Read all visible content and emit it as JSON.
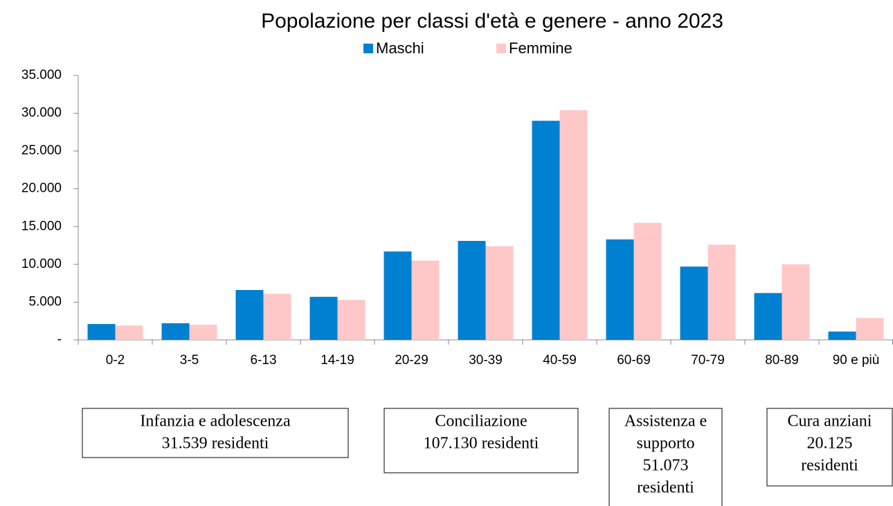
{
  "chart_data": {
    "type": "bar",
    "title": "Popolazione per classi d'età e genere - anno 2023",
    "categories": [
      "0-2",
      "3-5",
      "6-13",
      "14-19",
      "20-29",
      "30-39",
      "40-59",
      "60-69",
      "70-79",
      "80-89",
      "90 e più"
    ],
    "series": [
      {
        "name": "Maschi",
        "color": "#0080d0",
        "values": [
          2100,
          2200,
          6600,
          5700,
          11700,
          13100,
          29000,
          13300,
          9700,
          6200,
          1100
        ]
      },
      {
        "name": "Femmine",
        "color": "#ffc8c8",
        "values": [
          1900,
          2000,
          6100,
          5300,
          10500,
          12400,
          30400,
          15500,
          12600,
          10000,
          2900
        ]
      }
    ],
    "ylim": [
      0,
      35000
    ],
    "yticks": [
      {
        "value": 0,
        "label": "-"
      },
      {
        "value": 5000,
        "label": "5.000"
      },
      {
        "value": 10000,
        "label": "10.000"
      },
      {
        "value": 15000,
        "label": "15.000"
      },
      {
        "value": 20000,
        "label": "20.000"
      },
      {
        "value": 25000,
        "label": "25.000"
      },
      {
        "value": 30000,
        "label": "30.000"
      },
      {
        "value": 35000,
        "label": "35.000"
      }
    ],
    "grid": false,
    "legend": "top",
    "annotations": [
      {
        "lines": [
          "Infanzia e adolescenza",
          "31.539 residenti"
        ]
      },
      {
        "lines": [
          "Conciliazione",
          "107.130 residenti"
        ]
      },
      {
        "lines": [
          "Assistenza e",
          "supporto",
          "51.073",
          "residenti"
        ]
      },
      {
        "lines": [
          "Cura anziani",
          "20.125",
          "residenti"
        ]
      }
    ]
  }
}
